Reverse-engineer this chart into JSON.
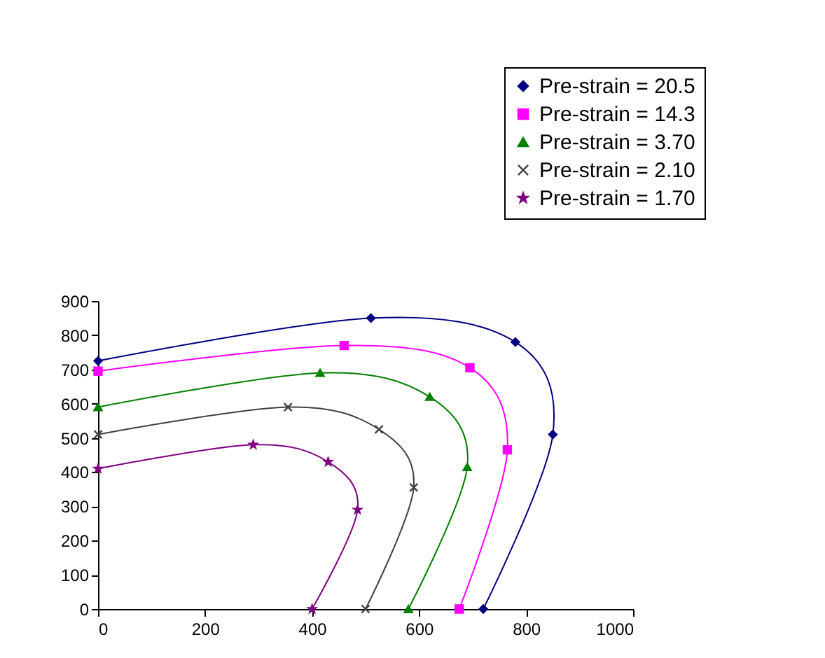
{
  "chart_data": {
    "type": "line",
    "xlim": [
      0,
      1000
    ],
    "xticks": [
      0,
      200,
      400,
      600,
      800,
      1000
    ],
    "ylim": [
      0,
      900
    ],
    "yticks": [
      0,
      100,
      200,
      300,
      400,
      500,
      600,
      700,
      800,
      900
    ],
    "grid": false,
    "legend": "top right",
    "line_style": "solid",
    "series": [
      {
        "name": "Pre-strain = 20.5",
        "color": "#000080",
        "marker": "diamond",
        "x": [
          0,
          510,
          780,
          850,
          720
        ],
        "values": [
          725,
          850,
          780,
          510,
          0
        ]
      },
      {
        "name": "Pre-strain = 14.3",
        "color": "#ff00ff",
        "marker": "square",
        "x": [
          0,
          460,
          695,
          765,
          675
        ],
        "values": [
          695,
          770,
          705,
          465,
          0
        ]
      },
      {
        "name": "Pre-strain = 3.70",
        "color": "#008000",
        "marker": "triangle",
        "x": [
          0,
          415,
          620,
          690,
          580
        ],
        "values": [
          590,
          690,
          620,
          415,
          0
        ]
      },
      {
        "name": "Pre-strain = 2.10",
        "color": "#404040",
        "marker": "cross",
        "x": [
          0,
          355,
          525,
          590,
          500
        ],
        "values": [
          510,
          590,
          525,
          355,
          0
        ]
      },
      {
        "name": "Pre-strain = 1.70",
        "color": "#800080",
        "marker": "star",
        "x": [
          0,
          290,
          430,
          485,
          400
        ],
        "values": [
          410,
          480,
          430,
          290,
          0
        ]
      }
    ]
  }
}
